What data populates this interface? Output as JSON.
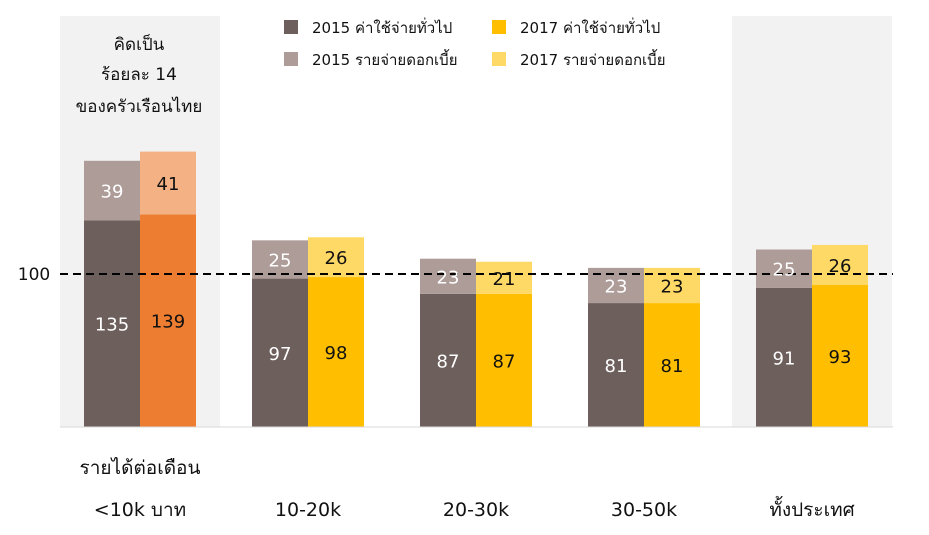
{
  "chart_data": {
    "type": "bar",
    "stacked": true,
    "categories": [
      "<10k บาท",
      "10-20k",
      "20-30k",
      "30-50k",
      "ทั้งประเทศ"
    ],
    "category_title": "รายได้ต่อเดือน",
    "note_lines": [
      "คิดเป็น",
      "ร้อยละ 14",
      "ของครัวเรือนไทย"
    ],
    "reference_line": {
      "value": 100,
      "label": "100",
      "style": "dashed"
    },
    "ylim": [
      0,
      200
    ],
    "groups": [
      {
        "name": "2015",
        "series": [
          {
            "name": "2015 ค่าใช้จ่ายทั่วไป",
            "values": [
              135,
              97,
              87,
              81,
              91
            ],
            "color": "#6d5f5c",
            "label_color": "#ffffff"
          },
          {
            "name": "2015 รายจ่ายดอกเบี้ย",
            "values": [
              39,
              25,
              23,
              23,
              25
            ],
            "color": "#ae9c99",
            "label_color": "#ffffff"
          }
        ]
      },
      {
        "name": "2017",
        "series": [
          {
            "name": "2017 ค่าใช้จ่ายทั่วไป",
            "values": [
              139,
              98,
              87,
              81,
              93
            ],
            "color": "#ffbf00",
            "label_color": "#111111",
            "highlight": {
              "index": 0,
              "color": "#ed7d31"
            }
          },
          {
            "name": "2017 รายจ่ายดอกเบี้ย",
            "values": [
              41,
              26,
              21,
              23,
              26
            ],
            "color": "#ffd966",
            "label_color": "#111111",
            "highlight": {
              "index": 0,
              "color": "#f4b183"
            }
          }
        ]
      }
    ],
    "shaded_categories": [
      0,
      4
    ],
    "shade_color": "#f2f2f2",
    "legend": [
      {
        "label": "2015 ค่าใช้จ่ายทั่วไป",
        "color": "#6d5f5c"
      },
      {
        "label": "2017 ค่าใช้จ่ายทั่วไป",
        "color": "#ffbf00"
      },
      {
        "label": "2015 รายจ่ายดอกเบี้ย",
        "color": "#ae9c99"
      },
      {
        "label": "2017 รายจ่ายดอกเบี้ย",
        "color": "#ffd966"
      }
    ],
    "legend_position": "top-center"
  }
}
